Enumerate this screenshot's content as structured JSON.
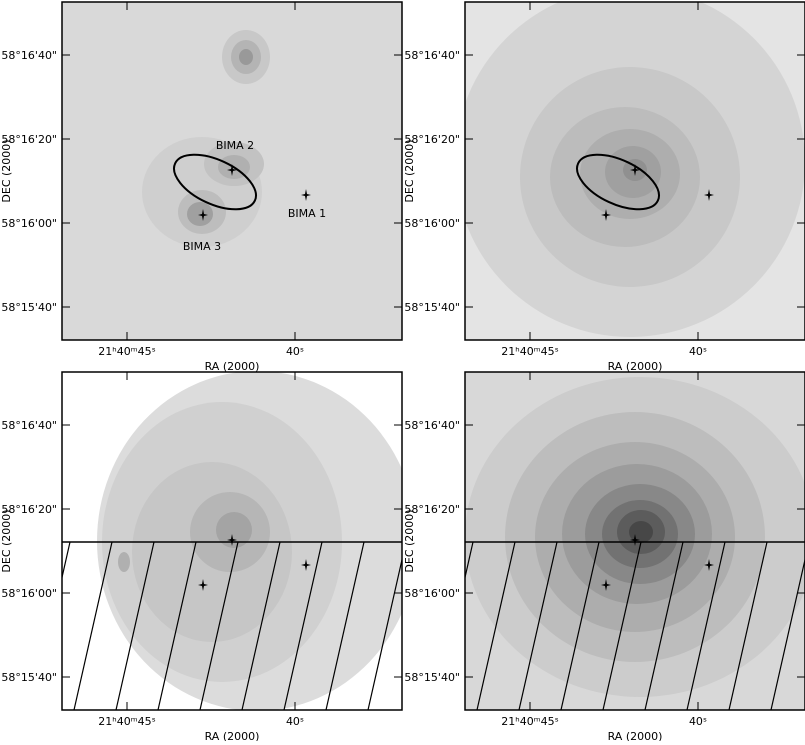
{
  "panels": [
    {
      "xlabel": "RA (2000)",
      "ylabel": "DEC (2000)",
      "yticks": [
        "58°16'40\"",
        "58°16'20\"",
        "58°16'00\"",
        "58°15'40\""
      ],
      "xticks": [
        "21ʰ40ᵐ45ˢ",
        "40ˢ"
      ],
      "sources": [
        "BIMA 2",
        "BIMA 1",
        "BIMA 3"
      ]
    },
    {
      "xlabel": "RA (2000)",
      "ylabel": "DEC (2000)",
      "yticks": [
        "58°16'40\"",
        "58°16'20\"",
        "58°16'00\"",
        "58°15'40\""
      ],
      "xticks": [
        "21ʰ40ᵐ45ˢ",
        "40ˢ"
      ]
    },
    {
      "xlabel": "RA (2000)",
      "ylabel": "DEC (2000)",
      "yticks": [
        "58°16'40\"",
        "58°16'20\"",
        "58°16'00\"",
        "58°15'40\""
      ],
      "xticks": [
        "21ʰ40ᵐ45ˢ",
        "40ˢ"
      ]
    },
    {
      "xlabel": "RA (2000)",
      "ylabel": "DEC (2000)",
      "yticks": [
        "58°16'40\"",
        "58°16'20\"",
        "58°16'00\"",
        "58°15'40\""
      ],
      "xticks": [
        "21ʰ40ᵐ45ˢ",
        "40ˢ"
      ]
    }
  ]
}
